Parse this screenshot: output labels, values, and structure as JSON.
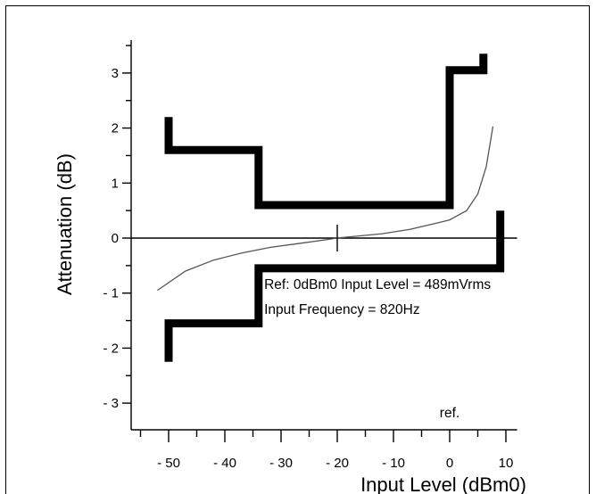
{
  "chart_data": {
    "type": "line",
    "xlabel": "Input Level (dBm0)",
    "ylabel": "Attenuation (dB)",
    "xlim": [
      -58,
      12
    ],
    "ylim": [
      -3.5,
      3.6
    ],
    "x_ticks": [
      {
        "value": -50,
        "label": "- 50"
      },
      {
        "value": -40,
        "label": "- 40"
      },
      {
        "value": -30,
        "label": "- 30"
      },
      {
        "value": -20,
        "label": "- 20"
      },
      {
        "value": -10,
        "label": "- 10"
      },
      {
        "value": 0,
        "label": "0"
      },
      {
        "value": 10,
        "label": "10"
      }
    ],
    "x_minor_ticks": [
      -55,
      -45,
      -35,
      -25,
      -15,
      -5,
      5
    ],
    "y_ticks": [
      {
        "value": 3,
        "label": "3"
      },
      {
        "value": 2,
        "label": "2"
      },
      {
        "value": 1,
        "label": "1"
      },
      {
        "value": 0,
        "label": "0"
      },
      {
        "value": -1,
        "label": "- 1"
      },
      {
        "value": -2,
        "label": "- 2"
      },
      {
        "value": -3,
        "label": "- 3"
      }
    ],
    "y_minor_ticks": [
      3.5,
      2.5,
      1.5,
      0.5,
      -0.5,
      -1.5,
      -2.5
    ],
    "series": [
      {
        "points": [
          [
            -52,
            -0.95
          ],
          [
            -47,
            -0.6
          ],
          [
            -42,
            -0.4
          ],
          [
            -37,
            -0.27
          ],
          [
            -32,
            -0.17
          ],
          [
            -27,
            -0.1
          ],
          [
            -22,
            -0.03
          ],
          [
            -20,
            0
          ],
          [
            -17,
            0.03
          ],
          [
            -12,
            0.08
          ],
          [
            -7,
            0.16
          ],
          [
            -2,
            0.28
          ],
          [
            0,
            0.33
          ],
          [
            3,
            0.5
          ],
          [
            5,
            0.8
          ],
          [
            6.5,
            1.3
          ],
          [
            7.7,
            2.03
          ]
        ]
      }
    ],
    "upper_mask": [
      [
        -50,
        2.2
      ],
      [
        -50,
        1.6
      ],
      [
        -34,
        1.6
      ],
      [
        -34,
        0.6
      ],
      [
        0,
        0.6
      ],
      [
        0,
        3.05
      ],
      [
        6,
        3.05
      ],
      [
        6,
        3.35
      ]
    ],
    "lower_mask": [
      [
        -50,
        -2.25
      ],
      [
        -50,
        -1.55
      ],
      [
        -34,
        -1.55
      ],
      [
        -34,
        -0.55
      ],
      [
        9,
        -0.55
      ],
      [
        9,
        0.5
      ]
    ],
    "reference_point": {
      "x": -20,
      "y": 0
    },
    "annotations": {
      "ref_marker": "ref.",
      "line1": "Ref: 0dBm0 Input Level = 489mVrms",
      "line2": "Input Frequency = 820Hz"
    }
  }
}
